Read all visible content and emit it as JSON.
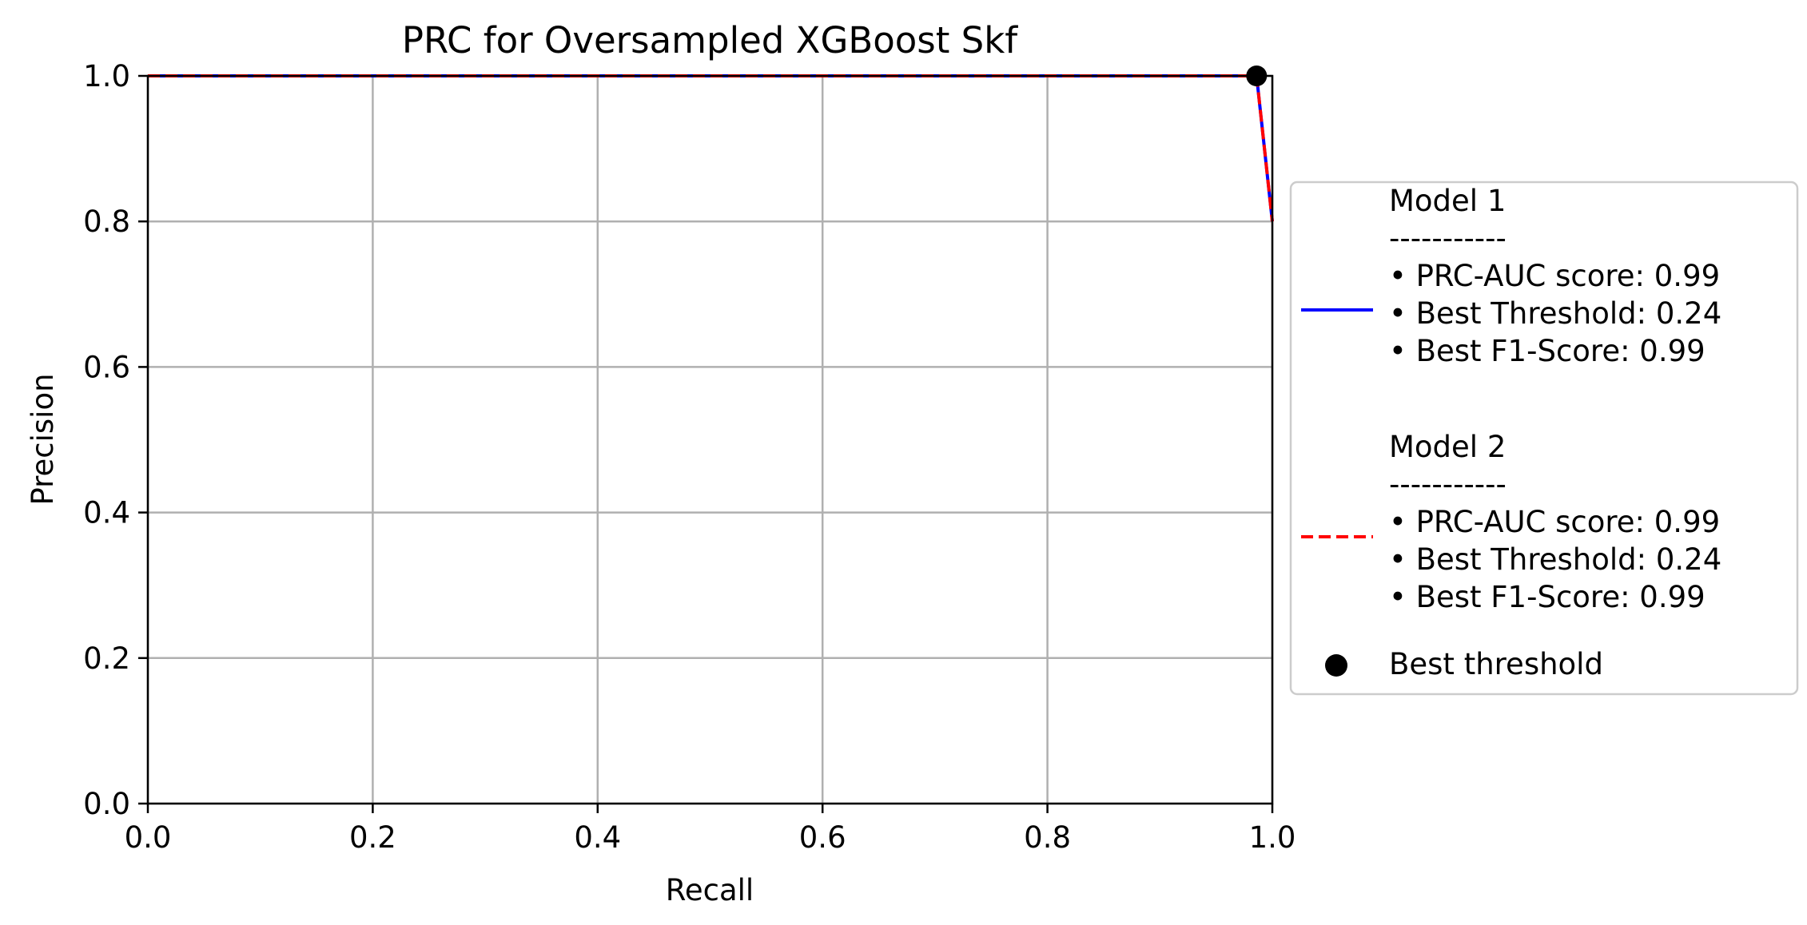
{
  "chart_data": {
    "type": "line",
    "title": "PRC for Oversampled XGBoost Skf",
    "xlabel": "Recall",
    "ylabel": "Precision",
    "xlim": [
      0.0,
      1.0
    ],
    "ylim": [
      0.0,
      1.0
    ],
    "xticks": [
      "0.0",
      "0.2",
      "0.4",
      "0.6",
      "0.8",
      "1.0"
    ],
    "yticks": [
      "0.0",
      "0.2",
      "0.4",
      "0.6",
      "0.8",
      "1.0"
    ],
    "grid": true,
    "legend_position": "center-right outside",
    "series": [
      {
        "name": "Model 1",
        "color": "#0000ff",
        "style": "solid",
        "x": [
          0.0,
          0.986,
          1.0
        ],
        "y": [
          1.0,
          1.0,
          0.8
        ],
        "legend_lines": [
          "Model 1",
          "-----------",
          " • PRC-AUC score: 0.99",
          " • Best Threshold: 0.24",
          " • Best F1-Score: 0.99"
        ]
      },
      {
        "name": "Model 2",
        "color": "#ff0000",
        "style": "dashed",
        "x": [
          0.0,
          0.986,
          1.0
        ],
        "y": [
          1.0,
          1.0,
          0.8
        ],
        "legend_lines": [
          "Model 2",
          "-----------",
          " • PRC-AUC score: 0.99",
          " • Best Threshold: 0.24",
          " • Best F1-Score: 0.99"
        ]
      }
    ],
    "best_point": {
      "name": "Best threshold",
      "x": 0.986,
      "y": 1.0,
      "color": "#000000"
    }
  }
}
